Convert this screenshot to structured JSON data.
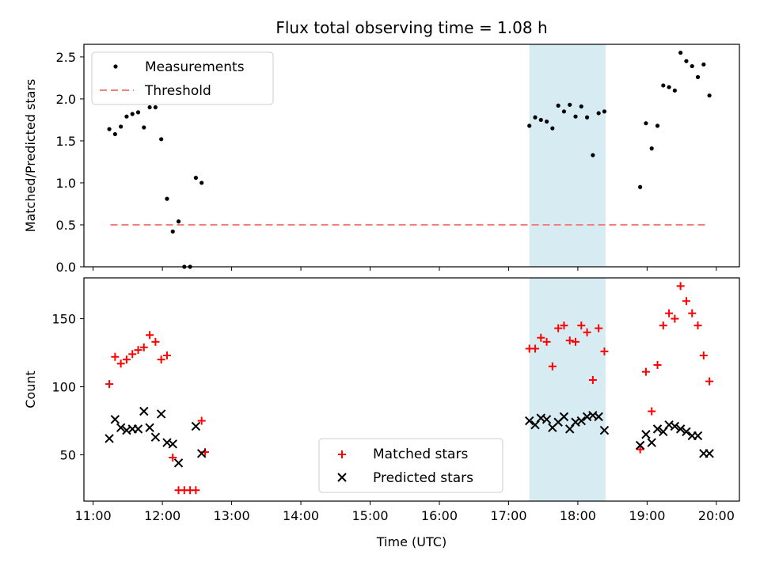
{
  "chart_data": [
    {
      "type": "scatter",
      "title": "Flux total observing time = 1.08 h",
      "ylabel": "Matched/Predicted stars",
      "xlabel": "",
      "xlim": [
        "10:52",
        "20:20"
      ],
      "ylim": [
        0,
        2.65
      ],
      "yticks": [
        0.0,
        0.5,
        1.0,
        1.5,
        2.0,
        2.5
      ],
      "ytick_labels": [
        "0.0",
        "0.5",
        "1.0",
        "1.5",
        "2.0",
        "2.5"
      ],
      "xticks": [
        "11:00",
        "12:00",
        "13:00",
        "14:00",
        "15:00",
        "16:00",
        "17:00",
        "18:00",
        "19:00",
        "20:00"
      ],
      "shaded_region": {
        "start": "17:18",
        "end": "18:24",
        "color": "#add8e6"
      },
      "legend_position": "upper-left",
      "threshold": {
        "name": "Threshold",
        "value": 0.5,
        "x_start": "11:15",
        "x_end": "19:53",
        "color": "#f08080",
        "style": "dashed"
      },
      "series": [
        {
          "name": "Measurements",
          "marker": "dot",
          "color": "#000000",
          "points": [
            [
              "11:14",
              1.64
            ],
            [
              "11:19",
              1.58
            ],
            [
              "11:24",
              1.67
            ],
            [
              "11:29",
              1.79
            ],
            [
              "11:34",
              1.82
            ],
            [
              "11:39",
              1.84
            ],
            [
              "11:44",
              1.66
            ],
            [
              "11:49",
              1.9
            ],
            [
              "11:54",
              1.9
            ],
            [
              "11:59",
              1.52
            ],
            [
              "12:04",
              0.81
            ],
            [
              "12:09",
              0.42
            ],
            [
              "12:14",
              0.54
            ],
            [
              "12:19",
              0.0
            ],
            [
              "12:24",
              0.0
            ],
            [
              "12:29",
              1.06
            ],
            [
              "12:34",
              1.0
            ],
            [
              "17:18",
              1.68
            ],
            [
              "17:23",
              1.78
            ],
            [
              "17:28",
              1.75
            ],
            [
              "17:33",
              1.73
            ],
            [
              "17:38",
              1.65
            ],
            [
              "17:43",
              1.92
            ],
            [
              "17:48",
              1.85
            ],
            [
              "17:53",
              1.93
            ],
            [
              "17:58",
              1.79
            ],
            [
              "18:03",
              1.91
            ],
            [
              "18:08",
              1.78
            ],
            [
              "18:13",
              1.33
            ],
            [
              "18:18",
              1.83
            ],
            [
              "18:23",
              1.85
            ],
            [
              "18:54",
              0.95
            ],
            [
              "18:59",
              1.71
            ],
            [
              "19:04",
              1.41
            ],
            [
              "19:09",
              1.68
            ],
            [
              "19:14",
              2.16
            ],
            [
              "19:19",
              2.14
            ],
            [
              "19:24",
              2.1
            ],
            [
              "19:29",
              2.55
            ],
            [
              "19:34",
              2.45
            ],
            [
              "19:39",
              2.39
            ],
            [
              "19:44",
              2.26
            ],
            [
              "19:49",
              2.41
            ],
            [
              "19:54",
              2.04
            ]
          ]
        }
      ]
    },
    {
      "type": "scatter",
      "title": "",
      "ylabel": "Count",
      "xlabel": "Time (UTC)",
      "xlim": [
        "10:52",
        "20:20"
      ],
      "ylim": [
        16,
        180
      ],
      "yticks": [
        50,
        100,
        150
      ],
      "ytick_labels": [
        "50",
        "100",
        "150"
      ],
      "xticks": [
        "11:00",
        "12:00",
        "13:00",
        "14:00",
        "15:00",
        "16:00",
        "17:00",
        "18:00",
        "19:00",
        "20:00"
      ],
      "xtick_labels": [
        "11:00",
        "12:00",
        "13:00",
        "14:00",
        "15:00",
        "16:00",
        "17:00",
        "18:00",
        "19:00",
        "20:00"
      ],
      "shaded_region": {
        "start": "17:18",
        "end": "18:24",
        "color": "#add8e6"
      },
      "legend_position": "lower-center",
      "series": [
        {
          "name": "Matched stars",
          "marker": "plus",
          "color": "#ff0000",
          "points": [
            [
              "11:14",
              102
            ],
            [
              "11:19",
              122
            ],
            [
              "11:24",
              117
            ],
            [
              "11:29",
              120
            ],
            [
              "11:34",
              124
            ],
            [
              "11:39",
              127
            ],
            [
              "11:44",
              129
            ],
            [
              "11:49",
              138
            ],
            [
              "11:54",
              133
            ],
            [
              "11:59",
              120
            ],
            [
              "12:04",
              123
            ],
            [
              "12:09",
              48
            ],
            [
              "12:14",
              24
            ],
            [
              "12:19",
              24
            ],
            [
              "12:24",
              24
            ],
            [
              "12:29",
              24
            ],
            [
              "12:34",
              75
            ],
            [
              "12:37",
              52
            ],
            [
              "17:18",
              128
            ],
            [
              "17:23",
              128
            ],
            [
              "17:28",
              136
            ],
            [
              "17:33",
              133
            ],
            [
              "17:38",
              115
            ],
            [
              "17:43",
              143
            ],
            [
              "17:48",
              145
            ],
            [
              "17:53",
              134
            ],
            [
              "17:58",
              133
            ],
            [
              "18:03",
              145
            ],
            [
              "18:08",
              140
            ],
            [
              "18:13",
              105
            ],
            [
              "18:18",
              143
            ],
            [
              "18:23",
              126
            ],
            [
              "18:54",
              54
            ],
            [
              "18:59",
              111
            ],
            [
              "19:04",
              82
            ],
            [
              "19:09",
              116
            ],
            [
              "19:14",
              145
            ],
            [
              "19:19",
              154
            ],
            [
              "19:24",
              150
            ],
            [
              "19:29",
              174
            ],
            [
              "19:34",
              163
            ],
            [
              "19:39",
              154
            ],
            [
              "19:44",
              145
            ],
            [
              "19:49",
              123
            ],
            [
              "19:54",
              104
            ]
          ]
        },
        {
          "name": "Predicted stars",
          "marker": "x",
          "color": "#000000",
          "points": [
            [
              "11:14",
              62
            ],
            [
              "11:19",
              76
            ],
            [
              "11:24",
              70
            ],
            [
              "11:29",
              68
            ],
            [
              "11:34",
              69
            ],
            [
              "11:39",
              69
            ],
            [
              "11:44",
              82
            ],
            [
              "11:49",
              70
            ],
            [
              "11:54",
              63
            ],
            [
              "11:59",
              80
            ],
            [
              "12:04",
              59
            ],
            [
              "12:09",
              58
            ],
            [
              "12:14",
              44
            ],
            [
              "12:29",
              71
            ],
            [
              "12:34",
              51
            ],
            [
              "17:18",
              75
            ],
            [
              "17:23",
              72
            ],
            [
              "17:28",
              77
            ],
            [
              "17:33",
              76
            ],
            [
              "17:38",
              70
            ],
            [
              "17:43",
              74
            ],
            [
              "17:48",
              78
            ],
            [
              "17:53",
              69
            ],
            [
              "17:58",
              74
            ],
            [
              "18:03",
              75
            ],
            [
              "18:08",
              78
            ],
            [
              "18:13",
              79
            ],
            [
              "18:18",
              78
            ],
            [
              "18:23",
              68
            ],
            [
              "18:54",
              57
            ],
            [
              "18:59",
              65
            ],
            [
              "19:04",
              59
            ],
            [
              "19:09",
              69
            ],
            [
              "19:14",
              67
            ],
            [
              "19:19",
              72
            ],
            [
              "19:24",
              71
            ],
            [
              "19:29",
              69
            ],
            [
              "19:34",
              67
            ],
            [
              "19:39",
              64
            ],
            [
              "19:44",
              64
            ],
            [
              "19:49",
              51
            ],
            [
              "19:54",
              51
            ]
          ]
        }
      ]
    }
  ]
}
